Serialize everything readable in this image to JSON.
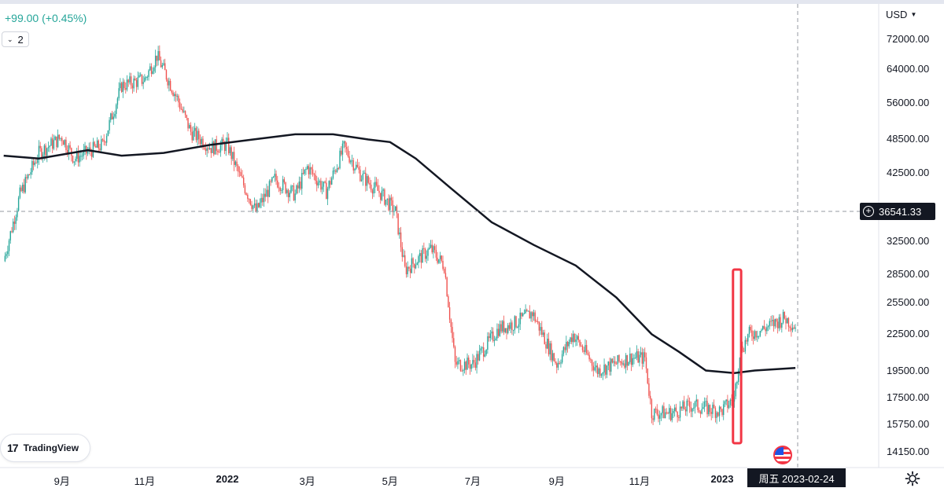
{
  "header": {
    "change": "+99.00 (+0.45%)",
    "collapse_count": "2"
  },
  "chart_data": {
    "type": "candlestick",
    "title": "",
    "currency": "USD",
    "price_scale": "log",
    "y_tick_labels": [
      "72000.00",
      "64000.00",
      "56000.00",
      "48500.00",
      "42500.00",
      "32500.00",
      "28500.00",
      "25500.00",
      "22500.00",
      "19500.00",
      "17500.00",
      "15750.00",
      "14150.00"
    ],
    "x_tick_labels": [
      "9月",
      "11月",
      "2022",
      "3月",
      "5月",
      "7月",
      "9月",
      "11月",
      "2023"
    ],
    "crosshair": {
      "price_label": "36541.33",
      "date_label": "周五 2023-02-24"
    },
    "close_series": {
      "dates": [
        "2021-07-20",
        "2021-08-01",
        "2021-08-15",
        "2021-09-01",
        "2021-09-10",
        "2021-10-01",
        "2021-10-15",
        "2021-11-01",
        "2021-11-10",
        "2021-11-25",
        "2021-12-05",
        "2021-12-20",
        "2022-01-01",
        "2022-01-10",
        "2022-01-22",
        "2022-02-05",
        "2022-02-20",
        "2022-03-01",
        "2022-03-15",
        "2022-03-28",
        "2022-04-10",
        "2022-04-25",
        "2022-05-05",
        "2022-05-12",
        "2022-05-31",
        "2022-06-10",
        "2022-06-18",
        "2022-07-01",
        "2022-07-20",
        "2022-08-01",
        "2022-08-14",
        "2022-09-01",
        "2022-09-13",
        "2022-10-01",
        "2022-10-25",
        "2022-11-05",
        "2022-11-10",
        "2022-11-25",
        "2022-12-10",
        "2022-12-31",
        "2023-01-10",
        "2023-01-14",
        "2023-01-21",
        "2023-02-01",
        "2023-02-16",
        "2023-02-24"
      ],
      "values": [
        30000,
        39000,
        46000,
        49000,
        45000,
        47500,
        60000,
        61500,
        67500,
        57000,
        50000,
        47000,
        47500,
        42000,
        36500,
        41500,
        39000,
        43500,
        39500,
        47000,
        42000,
        39000,
        36500,
        29000,
        31500,
        29500,
        20000,
        20000,
        23000,
        23500,
        24500,
        20000,
        22500,
        19500,
        20500,
        20500,
        16500,
        16500,
        17000,
        16600,
        17500,
        21000,
        22500,
        23000,
        24000,
        23200
      ]
    },
    "moving_average": {
      "dates": [
        "2021-07-20",
        "2021-08-15",
        "2021-09-20",
        "2021-10-15",
        "2021-11-15",
        "2021-12-20",
        "2022-01-20",
        "2022-02-20",
        "2022-03-20",
        "2022-04-15",
        "2022-05-01",
        "2022-05-20",
        "2022-06-15",
        "2022-07-15",
        "2022-08-15",
        "2022-09-15",
        "2022-10-15",
        "2022-11-10",
        "2022-11-30",
        "2022-12-20",
        "2023-01-10",
        "2023-01-25",
        "2023-02-24"
      ],
      "values": [
        45500,
        45000,
        46500,
        45500,
        46000,
        47500,
        48500,
        49500,
        49500,
        48500,
        48000,
        45000,
        40000,
        35000,
        32000,
        29500,
        26000,
        22500,
        21000,
        19500,
        19300,
        19500,
        19700
      ]
    },
    "annotation": {
      "type": "box",
      "color": "#f23645",
      "from": "2023-01-09",
      "to": "2023-01-15"
    }
  }
}
